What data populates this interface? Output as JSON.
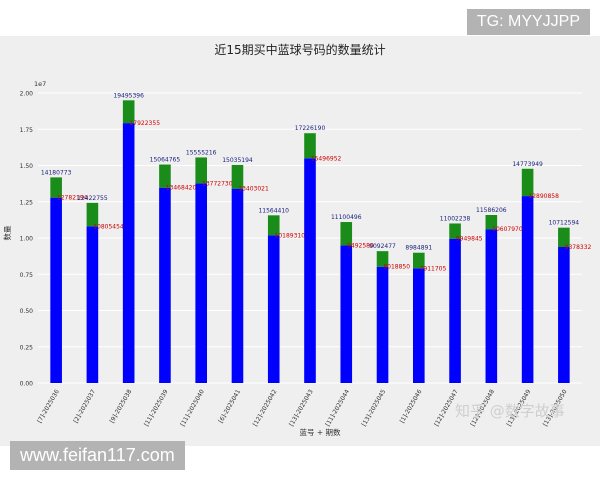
{
  "watermarks": {
    "top": "TG: MYYJJPP",
    "bottom": "www.feifan117.com",
    "zhihu": "知乎 @数字故事"
  },
  "colors": {
    "base": "#0000ff",
    "top": "#1a8c1a",
    "total_label": "#1a237e",
    "base_label": "#cc0000"
  },
  "chart_data": {
    "type": "bar",
    "stacked": true,
    "title": "近15期买中蓝球号码的数量统计",
    "xlabel": "蓝号 + 期数",
    "ylabel": "数量",
    "y_offset_label": "1e7",
    "ylim": [
      0,
      20000000
    ],
    "yticks": [
      "0.00",
      "0.25",
      "0.50",
      "0.75",
      "1.00",
      "1.25",
      "1.50",
      "1.75",
      "2.00"
    ],
    "grid": true,
    "categories": [
      "[7]-2025036",
      "[2]-2025037",
      "[9]-2025038",
      "[11]-2025039",
      "[11]-2025040",
      "[6]-2025041",
      "[12]-2025042",
      "[13]-2025043",
      "[11]-2025044",
      "[13]-2025045",
      "[1]-2025046",
      "[12]-2025047",
      "[12]-2025048",
      "[13]-2025049",
      "[13]-2025050"
    ],
    "totals": [
      14180773,
      12422755,
      19495396,
      15064765,
      15555216,
      15035194,
      11564410,
      17226190,
      11100496,
      9092477,
      8984891,
      11002238,
      11586206,
      14773949,
      10712594
    ],
    "base_values": [
      12782194,
      10805454,
      17922355,
      13468420,
      13772730,
      13403021,
      10189310,
      15496952,
      9492580,
      8018850,
      7911705,
      9949845,
      10607970,
      12890858,
      9378332
    ],
    "total_labels": [
      "14180773",
      "12422755",
      "19495396",
      "15064765",
      "15555216",
      "15035194",
      "11564410",
      "17226190",
      "11100496",
      "9092477",
      "8984891",
      "11002238",
      "11586206",
      "14773949",
      "10712594"
    ],
    "base_labels": [
      "12782194",
      "10805454",
      "17922355",
      "13468420",
      "13772730",
      "13403021",
      "10189310",
      "15496952",
      "9492580",
      "8018850",
      "7911705",
      "9949845",
      "10607970",
      "12890858",
      "9378332"
    ]
  }
}
